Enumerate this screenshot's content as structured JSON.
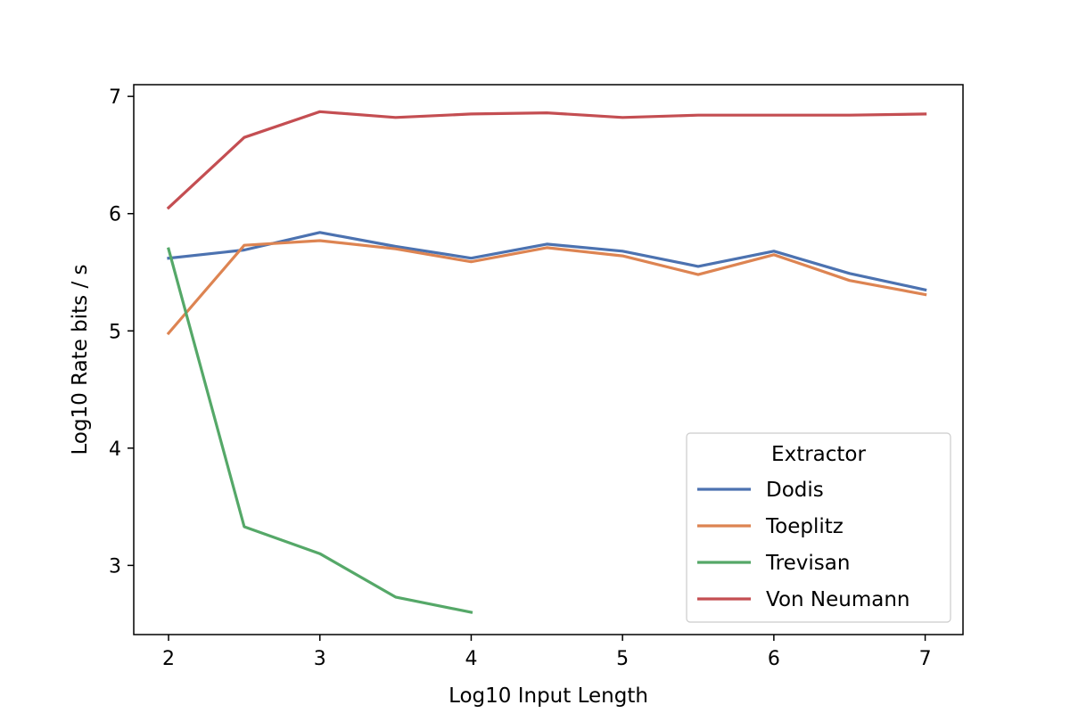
{
  "chart_data": {
    "type": "line",
    "title": "",
    "xlabel": "Log10 Input Length",
    "ylabel": "Log10 Rate bits / s",
    "xlim": [
      1.77,
      7.25
    ],
    "ylim": [
      2.41,
      7.1
    ],
    "xticks": [
      2,
      3,
      4,
      5,
      6,
      7
    ],
    "yticks": [
      3,
      4,
      5,
      6,
      7
    ],
    "grid": false,
    "legend": {
      "title": "Extractor",
      "placement": "lower right"
    },
    "series": [
      {
        "name": "Dodis",
        "color": "#4c72b0",
        "x": [
          2,
          2.5,
          3,
          3.5,
          4,
          4.5,
          5,
          5.5,
          6,
          6.5,
          7
        ],
        "y": [
          5.62,
          5.69,
          5.84,
          5.72,
          5.62,
          5.74,
          5.68,
          5.55,
          5.68,
          5.49,
          5.35
        ]
      },
      {
        "name": "Toeplitz",
        "color": "#dd8452",
        "x": [
          2,
          2.5,
          3,
          3.5,
          4,
          4.5,
          5,
          5.5,
          6,
          6.5,
          7
        ],
        "y": [
          4.98,
          5.73,
          5.77,
          5.7,
          5.59,
          5.71,
          5.64,
          5.48,
          5.65,
          5.43,
          5.31
        ]
      },
      {
        "name": "Trevisan",
        "color": "#55a868",
        "x": [
          2,
          2.5,
          3,
          3.5,
          4
        ],
        "y": [
          5.7,
          3.33,
          3.1,
          2.73,
          2.6
        ]
      },
      {
        "name": "Von Neumann",
        "color": "#c44e52",
        "x": [
          2,
          2.5,
          3,
          3.5,
          4,
          4.5,
          5,
          5.5,
          6,
          6.5,
          7
        ],
        "y": [
          6.05,
          6.65,
          6.87,
          6.82,
          6.85,
          6.86,
          6.82,
          6.84,
          6.84,
          6.84,
          6.85
        ]
      }
    ]
  }
}
